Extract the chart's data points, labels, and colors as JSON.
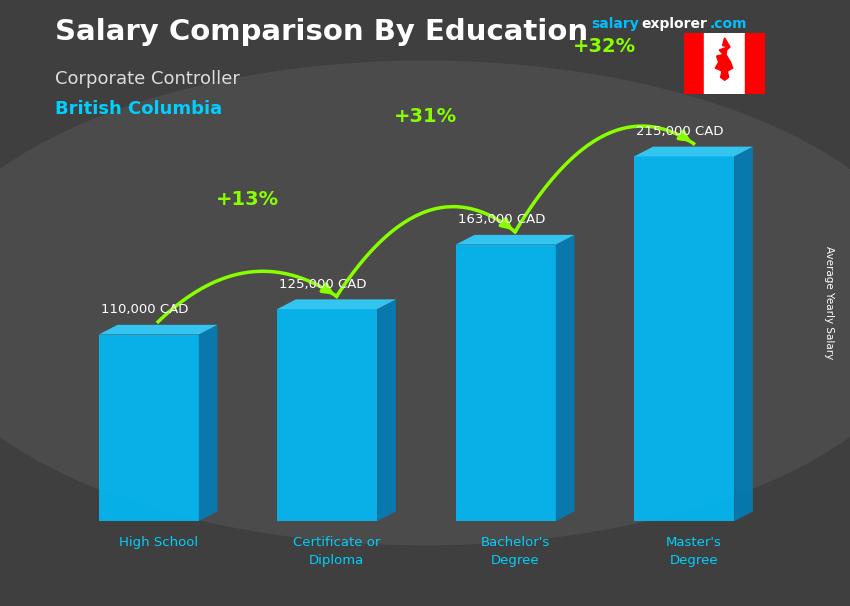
{
  "title": "Salary Comparison By Education",
  "subtitle": "Corporate Controller",
  "location": "British Columbia",
  "ylabel": "Average Yearly Salary",
  "categories": [
    "High School",
    "Certificate or\nDiploma",
    "Bachelor's\nDegree",
    "Master's\nDegree"
  ],
  "values": [
    110000,
    125000,
    163000,
    215000
  ],
  "value_labels": [
    "110,000 CAD",
    "125,000 CAD",
    "163,000 CAD",
    "215,000 CAD"
  ],
  "pct_changes": [
    "+13%",
    "+31%",
    "+32%"
  ],
  "bar_color_front": "#00BFFF",
  "bar_color_side": "#007FBB",
  "bar_color_top": "#33CFFF",
  "pct_color": "#88FF00",
  "title_color": "#FFFFFF",
  "subtitle_color": "#DDDDDD",
  "location_color": "#00CFFF",
  "value_color": "#FFFFFF",
  "xlabel_color": "#00CFFF",
  "ylabel_color": "#FFFFFF",
  "bg_color": "#3a3a3a",
  "brand_salary_color": "#00BFFF",
  "brand_explorer_color": "#FFFFFF",
  "ylim": [
    0,
    250000
  ],
  "figsize": [
    8.5,
    6.06
  ],
  "dpi": 100
}
